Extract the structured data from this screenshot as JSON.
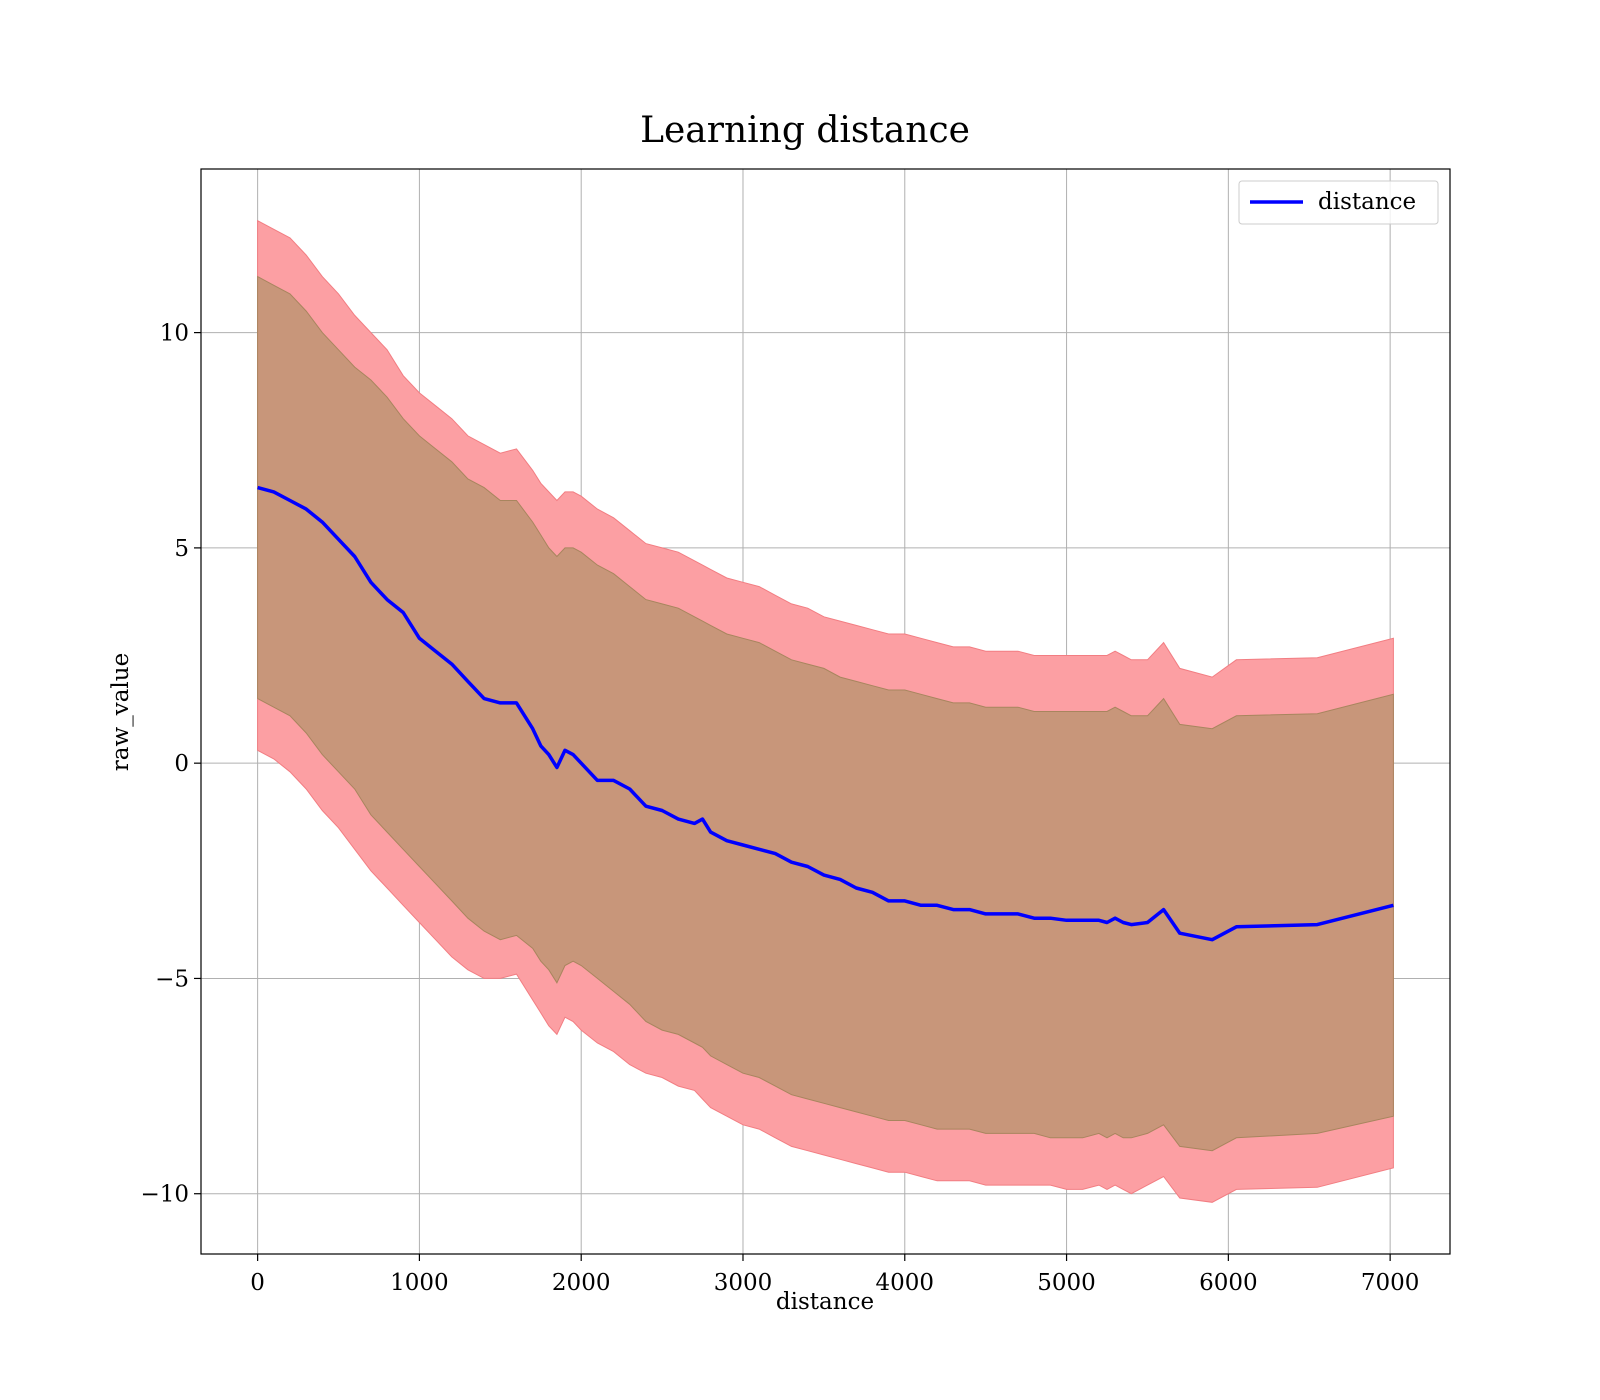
{
  "chart_data": {
    "type": "area",
    "title": "Learning distance",
    "xlabel": "distance",
    "ylabel": "raw_value",
    "xlim": [
      -350,
      7370
    ],
    "ylim": [
      -11.4,
      13.8
    ],
    "xticks": [
      0,
      1000,
      2000,
      3000,
      4000,
      5000,
      6000,
      7000
    ],
    "xtick_labels": [
      "0",
      "1000",
      "2000",
      "3000",
      "4000",
      "5000",
      "6000",
      "7000"
    ],
    "yticks": [
      -10,
      -5,
      0,
      5,
      10
    ],
    "ytick_labels": [
      "−10",
      "−5",
      "0",
      "5",
      "10"
    ],
    "grid": true,
    "legend": {
      "position": "top-right",
      "entries": [
        "distance"
      ]
    },
    "colors": {
      "line": "#0000ff",
      "outer_band": "#fc9fa3",
      "inner_band": "#c8967a"
    },
    "x": [
      0,
      100,
      200,
      300,
      400,
      500,
      600,
      700,
      800,
      900,
      1000,
      1100,
      1200,
      1300,
      1400,
      1500,
      1600,
      1700,
      1750,
      1800,
      1850,
      1900,
      1950,
      2000,
      2100,
      2200,
      2300,
      2400,
      2500,
      2600,
      2700,
      2750,
      2800,
      2900,
      3000,
      3100,
      3200,
      3300,
      3400,
      3500,
      3600,
      3700,
      3800,
      3900,
      4000,
      4100,
      4200,
      4300,
      4400,
      4500,
      4600,
      4700,
      4800,
      4900,
      5000,
      5100,
      5200,
      5250,
      5300,
      5350,
      5400,
      5500,
      5600,
      5700,
      5900,
      6050,
      6550,
      7020
    ],
    "series": [
      {
        "name": "distance",
        "kind": "line",
        "values": [
          6.4,
          6.3,
          6.1,
          5.9,
          5.6,
          5.2,
          4.8,
          4.2,
          3.8,
          3.5,
          2.9,
          2.6,
          2.3,
          1.9,
          1.5,
          1.4,
          1.4,
          0.8,
          0.4,
          0.2,
          -0.1,
          0.3,
          0.2,
          0.0,
          -0.4,
          -0.4,
          -0.6,
          -1.0,
          -1.1,
          -1.3,
          -1.4,
          -1.3,
          -1.6,
          -1.8,
          -1.9,
          -2.0,
          -2.1,
          -2.3,
          -2.4,
          -2.6,
          -2.7,
          -2.9,
          -3.0,
          -3.2,
          -3.2,
          -3.3,
          -3.3,
          -3.4,
          -3.4,
          -3.5,
          -3.5,
          -3.5,
          -3.6,
          -3.6,
          -3.65,
          -3.65,
          -3.65,
          -3.7,
          -3.6,
          -3.7,
          -3.75,
          -3.7,
          -3.4,
          -3.95,
          -4.1,
          -3.8,
          -3.75,
          -3.3
        ]
      },
      {
        "name": "outer band upper",
        "kind": "band",
        "values": [
          12.6,
          12.4,
          12.2,
          11.8,
          11.3,
          10.9,
          10.4,
          10.0,
          9.6,
          9.0,
          8.6,
          8.3,
          8.0,
          7.6,
          7.4,
          7.2,
          7.3,
          6.8,
          6.5,
          6.3,
          6.1,
          6.3,
          6.3,
          6.2,
          5.9,
          5.7,
          5.4,
          5.1,
          5.0,
          4.9,
          4.7,
          4.6,
          4.5,
          4.3,
          4.2,
          4.1,
          3.9,
          3.7,
          3.6,
          3.4,
          3.3,
          3.2,
          3.1,
          3.0,
          3.0,
          2.9,
          2.8,
          2.7,
          2.7,
          2.6,
          2.6,
          2.6,
          2.5,
          2.5,
          2.5,
          2.5,
          2.5,
          2.5,
          2.6,
          2.5,
          2.4,
          2.4,
          2.8,
          2.2,
          2.0,
          2.4,
          2.45,
          2.9
        ]
      },
      {
        "name": "inner band upper",
        "kind": "band",
        "values": [
          11.3,
          11.1,
          10.9,
          10.5,
          10.0,
          9.6,
          9.2,
          8.9,
          8.5,
          8.0,
          7.6,
          7.3,
          7.0,
          6.6,
          6.4,
          6.1,
          6.1,
          5.6,
          5.3,
          5.0,
          4.8,
          5.0,
          5.0,
          4.9,
          4.6,
          4.4,
          4.1,
          3.8,
          3.7,
          3.6,
          3.4,
          3.3,
          3.2,
          3.0,
          2.9,
          2.8,
          2.6,
          2.4,
          2.3,
          2.2,
          2.0,
          1.9,
          1.8,
          1.7,
          1.7,
          1.6,
          1.5,
          1.4,
          1.4,
          1.3,
          1.3,
          1.3,
          1.2,
          1.2,
          1.2,
          1.2,
          1.2,
          1.2,
          1.3,
          1.2,
          1.1,
          1.1,
          1.5,
          0.9,
          0.8,
          1.1,
          1.15,
          1.6
        ]
      },
      {
        "name": "inner band lower",
        "kind": "band",
        "values": [
          1.5,
          1.3,
          1.1,
          0.7,
          0.2,
          -0.2,
          -0.6,
          -1.2,
          -1.6,
          -2.0,
          -2.4,
          -2.8,
          -3.2,
          -3.6,
          -3.9,
          -4.1,
          -4.0,
          -4.3,
          -4.6,
          -4.8,
          -5.1,
          -4.7,
          -4.6,
          -4.7,
          -5.0,
          -5.3,
          -5.6,
          -6.0,
          -6.2,
          -6.3,
          -6.5,
          -6.6,
          -6.8,
          -7.0,
          -7.2,
          -7.3,
          -7.5,
          -7.7,
          -7.8,
          -7.9,
          -8.0,
          -8.1,
          -8.2,
          -8.3,
          -8.3,
          -8.4,
          -8.5,
          -8.5,
          -8.5,
          -8.6,
          -8.6,
          -8.6,
          -8.6,
          -8.7,
          -8.7,
          -8.7,
          -8.6,
          -8.7,
          -8.6,
          -8.7,
          -8.7,
          -8.6,
          -8.4,
          -8.9,
          -9.0,
          -8.7,
          -8.6,
          -8.2
        ]
      },
      {
        "name": "outer band lower",
        "kind": "band",
        "values": [
          0.3,
          0.1,
          -0.2,
          -0.6,
          -1.1,
          -1.5,
          -2.0,
          -2.5,
          -2.9,
          -3.3,
          -3.7,
          -4.1,
          -4.5,
          -4.8,
          -5.0,
          -5.0,
          -4.9,
          -5.5,
          -5.8,
          -6.1,
          -6.3,
          -5.9,
          -6.0,
          -6.2,
          -6.5,
          -6.7,
          -7.0,
          -7.2,
          -7.3,
          -7.5,
          -7.6,
          -7.8,
          -8.0,
          -8.2,
          -8.4,
          -8.5,
          -8.7,
          -8.9,
          -9.0,
          -9.1,
          -9.2,
          -9.3,
          -9.4,
          -9.5,
          -9.5,
          -9.6,
          -9.7,
          -9.7,
          -9.7,
          -9.8,
          -9.8,
          -9.8,
          -9.8,
          -9.8,
          -9.9,
          -9.9,
          -9.8,
          -9.9,
          -9.8,
          -9.9,
          -10.0,
          -9.8,
          -9.6,
          -10.1,
          -10.2,
          -9.9,
          -9.85,
          -9.4
        ]
      }
    ]
  }
}
